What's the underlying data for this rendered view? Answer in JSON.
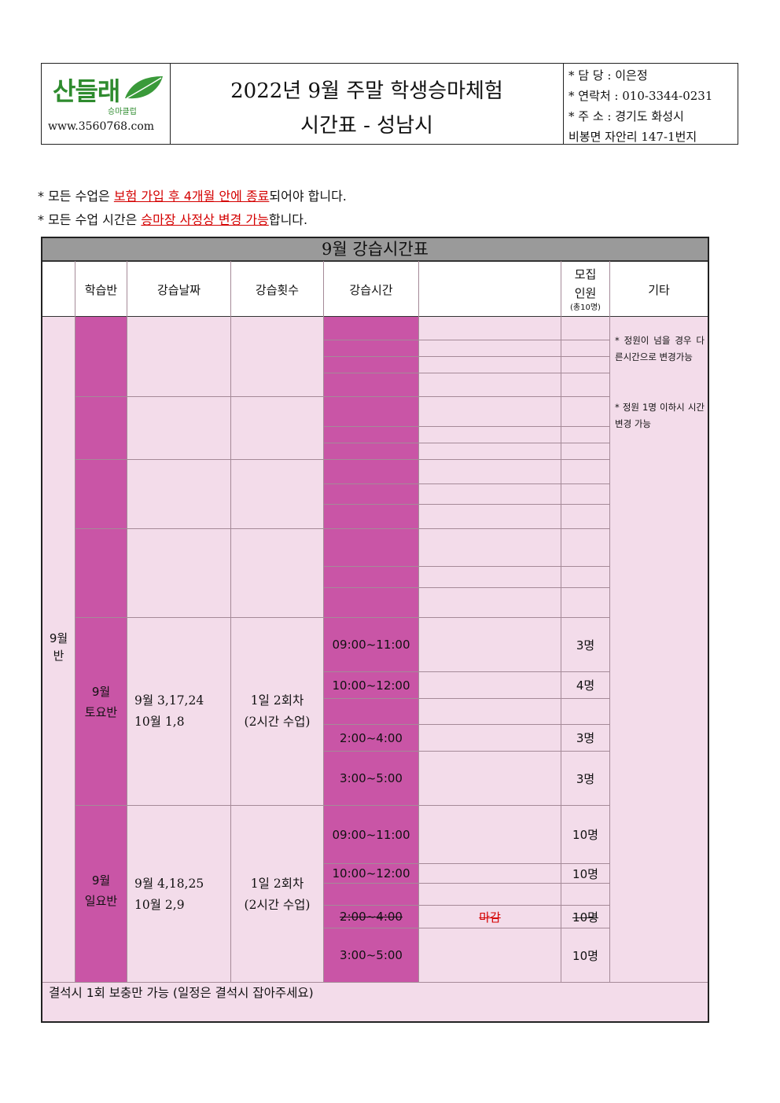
{
  "header": {
    "logo": {
      "text": "산들래",
      "sub": "승마클럽",
      "url": "www.3560768.com"
    },
    "title_line1": "2022년 9월 주말 학생승마체험",
    "title_line2": "시간표 - 성남시",
    "contact": {
      "manager": "* 담  당 : 이은정",
      "phone": "* 연락처 : 010-3344-0231",
      "address1": "* 주  소 : 경기도 화성시",
      "address2": "비봉면 자안리 147-1번지"
    }
  },
  "notes": [
    {
      "prefix": "* 모든 수업은 ",
      "highlight": "보험 가입 후 4개월 안에 종료",
      "suffix": "되어야 합니다."
    },
    {
      "prefix": "* 모든 수업 시간은 ",
      "highlight": "승마장 사정상 변경 가능",
      "suffix": "합니다."
    }
  ],
  "timetable": {
    "title": "9월 강습시간표",
    "headers": {
      "class": "학습반",
      "dates": "강습날짜",
      "count": "강습횟수",
      "time": "강습시간",
      "recruit_1": "모집",
      "recruit_2": "인원",
      "recruit_3": "(총10명)",
      "etc": "기타"
    },
    "month_label_1": "9월",
    "month_label_2": "반",
    "etc_note_1": "* 정원이 넘을 경우 다른시간으로 변경가능",
    "etc_note_2": "* 정원 1명 이하시 시간 변경 가능",
    "saturday": {
      "class_1": "9월",
      "class_2": "토요반",
      "dates_1": "9월 3,17,24",
      "dates_2": "10월 1,8",
      "count_1": "1일 2회차",
      "count_2": "(2시간 수업)",
      "slots": [
        {
          "time": "09:00~11:00",
          "capacity": "3명"
        },
        {
          "time": "10:00~12:00",
          "capacity": "4명"
        },
        {
          "time": "",
          "capacity": ""
        },
        {
          "time": "2:00~4:00",
          "capacity": "3명"
        },
        {
          "time": "3:00~5:00",
          "capacity": "3명"
        }
      ]
    },
    "sunday": {
      "class_1": "9월",
      "class_2": "일요반",
      "dates_1": "9월 4,18,25",
      "dates_2": "10월 2,9",
      "count_1": "1일 2회차",
      "count_2": "(2시간 수업)",
      "slots": [
        {
          "time": "09:00~11:00",
          "capacity": "10명"
        },
        {
          "time": "10:00~12:00",
          "capacity": "10명"
        },
        {
          "time": "",
          "capacity": ""
        },
        {
          "time": "2:00~4:00",
          "status": "마감",
          "capacity": "10명"
        },
        {
          "time": "3:00~5:00",
          "capacity": "10명"
        }
      ]
    },
    "footer": "결석시 1회 보충만 가능 (일정은 결석시 잡아주세요)"
  }
}
